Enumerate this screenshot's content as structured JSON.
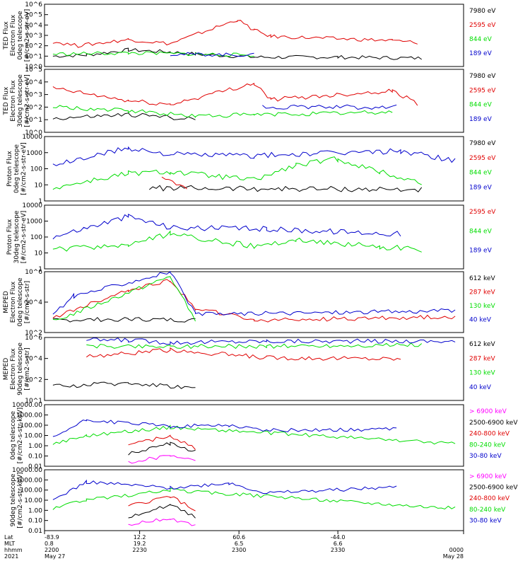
{
  "chart_data": [
    {
      "type": "line",
      "panel": "ted-electron-0deg",
      "ylabel": [
        "TED Flux",
        "Electron Flux",
        "0deg telescope",
        "[#/cm2-s-str-eV]"
      ],
      "yscale": "log",
      "ylim_exp": [
        0,
        6
      ],
      "yticks": [
        "10^0",
        "10^1",
        "10^2",
        "10^3",
        "10^4",
        "10^5",
        "10^6"
      ],
      "series": [
        {
          "name": "7980 eV",
          "color": "#000000",
          "values": [
            [
              0.02,
              1.0
            ],
            [
              0.1,
              1.1
            ],
            [
              0.2,
              1.6
            ],
            [
              0.3,
              1.4
            ],
            [
              0.36,
              1.2
            ],
            [
              0.5,
              0.9
            ],
            [
              0.7,
              0.9
            ],
            [
              0.9,
              0.8
            ]
          ]
        },
        {
          "name": "2595 eV",
          "color": "#e00000",
          "values": [
            [
              0.02,
              2.4
            ],
            [
              0.08,
              2.0
            ],
            [
              0.2,
              2.6
            ],
            [
              0.3,
              2.2
            ],
            [
              0.46,
              4.5
            ],
            [
              0.5,
              3.5
            ],
            [
              0.54,
              2.9
            ],
            [
              0.83,
              2.5
            ],
            [
              0.89,
              2.3
            ]
          ]
        },
        {
          "name": "844 eV",
          "color": "#00dd00",
          "values": [
            [
              0.02,
              1.2
            ],
            [
              0.2,
              1.3
            ],
            [
              0.36,
              1.2
            ],
            [
              0.5,
              1.1
            ]
          ]
        },
        {
          "name": "189 eV",
          "color": "#0000cc",
          "values": [
            [
              0.3,
              1.2
            ],
            [
              0.5,
              1.1
            ]
          ]
        }
      ]
    },
    {
      "type": "line",
      "panel": "ted-electron-30deg",
      "ylabel": [
        "TED Flux",
        "Electron Flux",
        "30deg telescope",
        "[#/cm2-s-str-eV]"
      ],
      "yscale": "log",
      "ylim_exp": [
        0,
        5
      ],
      "yticks": [
        "10^0",
        "10^1",
        "10^2",
        "10^3",
        "10^4",
        "10^5"
      ],
      "series": [
        {
          "name": "7980 eV",
          "color": "#000000",
          "values": [
            [
              0.02,
              1.1
            ],
            [
              0.2,
              1.4
            ],
            [
              0.3,
              1.2
            ],
            [
              0.36,
              1.0
            ]
          ]
        },
        {
          "name": "2595 eV",
          "color": "#e00000",
          "values": [
            [
              0.02,
              3.5
            ],
            [
              0.2,
              2.5
            ],
            [
              0.3,
              2.2
            ],
            [
              0.5,
              3.9
            ],
            [
              0.54,
              2.6
            ],
            [
              0.83,
              3.3
            ],
            [
              0.89,
              2.3
            ]
          ]
        },
        {
          "name": "844 eV",
          "color": "#00dd00",
          "values": [
            [
              0.02,
              2.0
            ],
            [
              0.2,
              1.7
            ],
            [
              0.36,
              1.3
            ],
            [
              0.5,
              1.4
            ],
            [
              0.83,
              1.6
            ]
          ]
        },
        {
          "name": "189 eV",
          "color": "#0000cc",
          "values": [
            [
              0.52,
              2.0
            ],
            [
              0.84,
              2.0
            ]
          ]
        }
      ]
    },
    {
      "type": "line",
      "panel": "ted-proton-0deg",
      "ylabel": [
        "Proton Flux",
        "0deg telescope",
        "[#/cm2-s-str-eV]"
      ],
      "yscale": "log",
      "ylim_exp": [
        0,
        4
      ],
      "yticks": [
        "1",
        "10",
        "100",
        "1000",
        "10000"
      ],
      "series": [
        {
          "name": "7980 eV",
          "color": "#000000",
          "values": [
            [
              0.25,
              0.8
            ],
            [
              0.9,
              0.7
            ]
          ]
        },
        {
          "name": "2595 eV",
          "color": "#e00000",
          "values": [
            [
              0.28,
              1.4
            ],
            [
              0.34,
              0.8
            ]
          ]
        },
        {
          "name": "844 eV",
          "color": "#00dd00",
          "values": [
            [
              0.02,
              0.8
            ],
            [
              0.2,
              1.7
            ],
            [
              0.3,
              1.8
            ],
            [
              0.5,
              1.3
            ],
            [
              0.6,
              2.2
            ],
            [
              0.7,
              2.6
            ],
            [
              0.8,
              1.8
            ],
            [
              0.9,
              1.1
            ]
          ]
        },
        {
          "name": "189 eV",
          "color": "#0000cc",
          "values": [
            [
              0.02,
              2.2
            ],
            [
              0.2,
              3.3
            ],
            [
              0.3,
              2.9
            ],
            [
              0.5,
              2.8
            ],
            [
              0.85,
              3.1
            ],
            [
              0.98,
              2.5
            ]
          ]
        }
      ]
    },
    {
      "type": "line",
      "panel": "ted-proton-30deg",
      "ylabel": [
        "Proton Flux",
        "30deg telescope",
        "[#/cm2-s-str-eV]"
      ],
      "yscale": "log",
      "ylim_exp": [
        0,
        4
      ],
      "yticks": [
        "1",
        "10",
        "100",
        "1000",
        "10000"
      ],
      "series": [
        {
          "name": "2595 eV",
          "color": "#e00000",
          "values": [
            [
              0.25,
              1.2
            ]
          ]
        },
        {
          "name": "844 eV",
          "color": "#00dd00",
          "values": [
            [
              0.02,
              1.2
            ],
            [
              0.2,
              1.5
            ],
            [
              0.3,
              2.2
            ],
            [
              0.5,
              1.4
            ],
            [
              0.6,
              1.8
            ],
            [
              0.8,
              1.4
            ],
            [
              0.9,
              1.2
            ]
          ]
        },
        {
          "name": "189 eV",
          "color": "#0000cc",
          "values": [
            [
              0.02,
              2.0
            ],
            [
              0.2,
              3.3
            ],
            [
              0.3,
              2.6
            ],
            [
              0.53,
              2.5
            ],
            [
              0.85,
              2.2
            ]
          ]
        }
      ]
    },
    {
      "type": "line",
      "panel": "mepe-electron-0deg",
      "ylabel": [
        "MEPED",
        "Electron Flux",
        "0deg telescope",
        "[#/cm2-s-str]"
      ],
      "yscale": "log",
      "ylim_exp": [
        1,
        6
      ],
      "yticks": [
        "10^2",
        "10^4",
        "10^6"
      ],
      "series": [
        {
          "name": "612 keV",
          "color": "#000000",
          "values": [
            [
              0.02,
              2.0
            ],
            [
              0.2,
              2.1
            ],
            [
              0.36,
              2.0
            ]
          ]
        },
        {
          "name": "287 keV",
          "color": "#e00000",
          "values": [
            [
              0.02,
              2.2
            ],
            [
              0.2,
              4.5
            ],
            [
              0.3,
              5.3
            ],
            [
              0.36,
              3.0
            ],
            [
              0.5,
              2.0
            ],
            [
              0.98,
              2.3
            ]
          ]
        },
        {
          "name": "130 keV",
          "color": "#00dd00",
          "values": [
            [
              0.02,
              1.9
            ],
            [
              0.3,
              5.6
            ],
            [
              0.36,
              2.0
            ]
          ]
        },
        {
          "name": "40 keV",
          "color": "#0000cc",
          "values": [
            [
              0.02,
              2.5
            ],
            [
              0.07,
              4.0
            ],
            [
              0.3,
              6.0
            ],
            [
              0.36,
              2.5
            ],
            [
              0.98,
              2.8
            ]
          ]
        }
      ]
    },
    {
      "type": "line",
      "panel": "mepe-electron-90deg",
      "ylabel": [
        "MEPED",
        "Electron Flux",
        "90deg telescope",
        "[#/cm2-s-str]"
      ],
      "yscale": "log",
      "ylim_exp": [
        1,
        6
      ],
      "yticks": [
        "10^1",
        "10^2",
        "10^4",
        "10^6"
      ],
      "series": [
        {
          "name": "612 keV",
          "color": "#000000",
          "values": [
            [
              0.02,
              2.1
            ],
            [
              0.2,
              2.4
            ],
            [
              0.36,
              2.0
            ]
          ]
        },
        {
          "name": "287 keV",
          "color": "#e00000",
          "values": [
            [
              0.1,
              4.5
            ],
            [
              0.3,
              5.0
            ],
            [
              0.53,
              4.4
            ],
            [
              0.85,
              4.3
            ]
          ]
        },
        {
          "name": "130 keV",
          "color": "#00dd00",
          "values": [
            [
              0.1,
              5.3
            ],
            [
              0.3,
              5.3
            ],
            [
              0.53,
              5.3
            ],
            [
              0.9,
              5.4
            ]
          ]
        },
        {
          "name": "40 keV",
          "color": "#0000cc",
          "values": [
            [
              0.1,
              5.8
            ],
            [
              0.2,
              5.8
            ],
            [
              0.3,
              5.6
            ],
            [
              0.53,
              5.7
            ],
            [
              0.98,
              5.7
            ]
          ]
        }
      ]
    },
    {
      "type": "line",
      "panel": "mepe-proton-0deg",
      "ylabel": [
        "0deg telescope",
        "[#/cm2-s-str-keV]"
      ],
      "yscale": "log",
      "ylim_exp": [
        -2,
        4
      ],
      "yticks": [
        "0.01",
        "0.10",
        "1.00",
        "10.00",
        "100.00",
        "1000.00",
        "10000.00"
      ],
      "series": [
        {
          "name": "> 6900 keV",
          "color": "#ff00ff",
          "values": [
            [
              0.2,
              -1.6
            ],
            [
              0.3,
              -1.0
            ],
            [
              0.36,
              -1.5
            ]
          ]
        },
        {
          "name": "2500-6900 keV",
          "color": "#000000",
          "values": [
            [
              0.2,
              -0.8
            ],
            [
              0.3,
              0.2
            ],
            [
              0.36,
              -0.6
            ]
          ]
        },
        {
          "name": "240-800 keV",
          "color": "#e00000",
          "values": [
            [
              0.2,
              0.0
            ],
            [
              0.3,
              1.0
            ],
            [
              0.36,
              -0.3
            ]
          ]
        },
        {
          "name": "80-240 keV",
          "color": "#00dd00",
          "values": [
            [
              0.02,
              0.2
            ],
            [
              0.1,
              1.0
            ],
            [
              0.3,
              1.8
            ],
            [
              0.98,
              0.2
            ]
          ]
        },
        {
          "name": "30-80 keV",
          "color": "#0000cc",
          "values": [
            [
              0.02,
              0.8
            ],
            [
              0.1,
              2.5
            ],
            [
              0.3,
              1.9
            ],
            [
              0.44,
              2.0
            ],
            [
              0.53,
              1.5
            ],
            [
              0.84,
              1.6
            ]
          ]
        }
      ]
    },
    {
      "type": "line",
      "panel": "mepe-proton-90deg",
      "ylabel": [
        "90deg telescope",
        "[#/cm2-s-str-keV]"
      ],
      "yscale": "log",
      "ylim_exp": [
        -2,
        4
      ],
      "yticks": [
        "0.01",
        "0.10",
        "1.00",
        "10.00",
        "100.00",
        "1000.00",
        "10000.00"
      ],
      "series": [
        {
          "name": "> 6900 keV",
          "color": "#ff00ff",
          "values": [
            [
              0.2,
              -1.4
            ],
            [
              0.3,
              -0.8
            ],
            [
              0.36,
              -1.5
            ]
          ]
        },
        {
          "name": "2500-6900 keV",
          "color": "#000000",
          "values": [
            [
              0.2,
              -0.6
            ],
            [
              0.3,
              0.5
            ],
            [
              0.36,
              -0.6
            ]
          ]
        },
        {
          "name": "240-800 keV",
          "color": "#e00000",
          "values": [
            [
              0.2,
              0.4
            ],
            [
              0.3,
              1.4
            ],
            [
              0.36,
              0.0
            ]
          ]
        },
        {
          "name": "80-240 keV",
          "color": "#00dd00",
          "values": [
            [
              0.02,
              0.2
            ],
            [
              0.1,
              1.0
            ],
            [
              0.3,
              2.0
            ],
            [
              0.98,
              0.2
            ]
          ]
        },
        {
          "name": "30-80 keV",
          "color": "#0000cc",
          "values": [
            [
              0.02,
              1.0
            ],
            [
              0.1,
              2.8
            ],
            [
              0.3,
              2.2
            ],
            [
              0.44,
              2.7
            ],
            [
              0.53,
              1.7
            ],
            [
              0.84,
              2.3
            ]
          ]
        }
      ]
    }
  ],
  "xaxis": {
    "row_labels": [
      "Lat",
      "MLT",
      "hhmm",
      "2021"
    ],
    "ticks": [
      {
        "frac": 0.0,
        "lat": "-83.9",
        "mlt": "0.8",
        "hhmm": "2200",
        "date": "May 27"
      },
      {
        "frac": 0.227,
        "lat": "12.2",
        "mlt": "19.2",
        "hhmm": "2230",
        "date": ""
      },
      {
        "frac": 0.464,
        "lat": "60.6",
        "mlt": "6.5",
        "hhmm": "2300",
        "date": ""
      },
      {
        "frac": 0.7,
        "lat": "-44.0",
        "mlt": "6.6",
        "hhmm": "2330",
        "date": ""
      },
      {
        "frac": 1.0,
        "lat": "",
        "mlt": "",
        "hhmm": "0000",
        "date": "May 28"
      }
    ]
  }
}
